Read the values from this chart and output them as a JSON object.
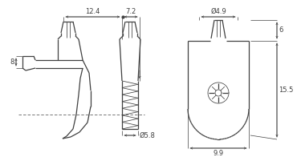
{
  "bg_color": "#ffffff",
  "line_color": "#404040",
  "dim_color": "#404040",
  "dims": {
    "d49": "Ø4.9",
    "d58": "Ø5.8",
    "w124": "12.4",
    "w72": "7.2",
    "h8": "8",
    "h6": "6",
    "h155": "15.5",
    "w99": "9.9"
  }
}
